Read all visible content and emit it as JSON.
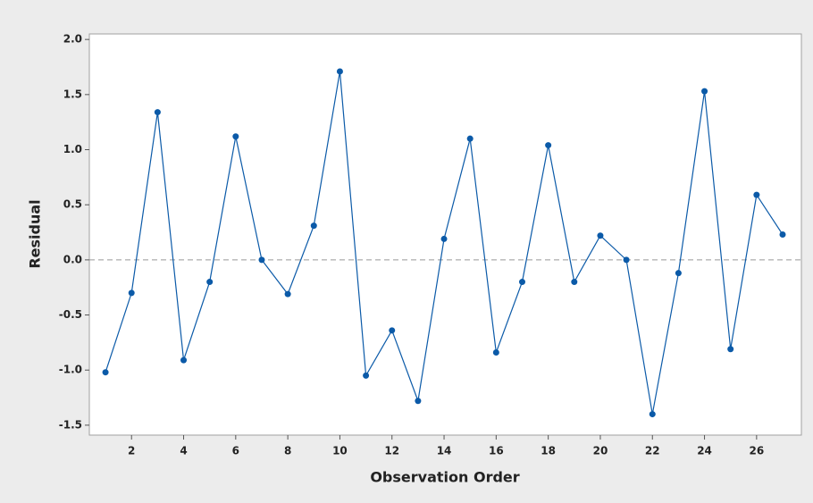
{
  "chart_data": {
    "type": "line",
    "xlabel": "Observation Order",
    "ylabel": "Residual",
    "x": [
      1,
      2,
      3,
      4,
      5,
      6,
      7,
      8,
      9,
      10,
      11,
      12,
      13,
      14,
      15,
      16,
      17,
      18,
      19,
      20,
      21,
      22,
      23,
      24,
      25,
      26,
      27
    ],
    "values": [
      -1.02,
      -0.3,
      1.34,
      -0.91,
      -0.2,
      1.12,
      0.0,
      -0.31,
      0.31,
      1.71,
      -1.05,
      -0.64,
      -1.28,
      0.19,
      1.1,
      -0.84,
      -0.2,
      1.04,
      -0.2,
      0.22,
      0.0,
      -1.4,
      -0.12,
      1.53,
      -0.81,
      0.59,
      0.23
    ],
    "color": "#0b5aa8",
    "xlim": [
      0.38,
      27.72
    ],
    "xticks": [
      2,
      4,
      6,
      8,
      10,
      12,
      14,
      16,
      18,
      20,
      22,
      24,
      26
    ],
    "ylim": [
      -1.59,
      2.05
    ],
    "yticks": [
      {
        "value": 2,
        "label": "2.0"
      },
      1.5,
      {
        "value": 1,
        "label": "1.0"
      },
      0.5,
      {
        "value": 0,
        "label": "0.0"
      },
      -0.5,
      {
        "value": -1,
        "label": "-1.0"
      },
      -1.5
    ],
    "reference_line": 0
  }
}
